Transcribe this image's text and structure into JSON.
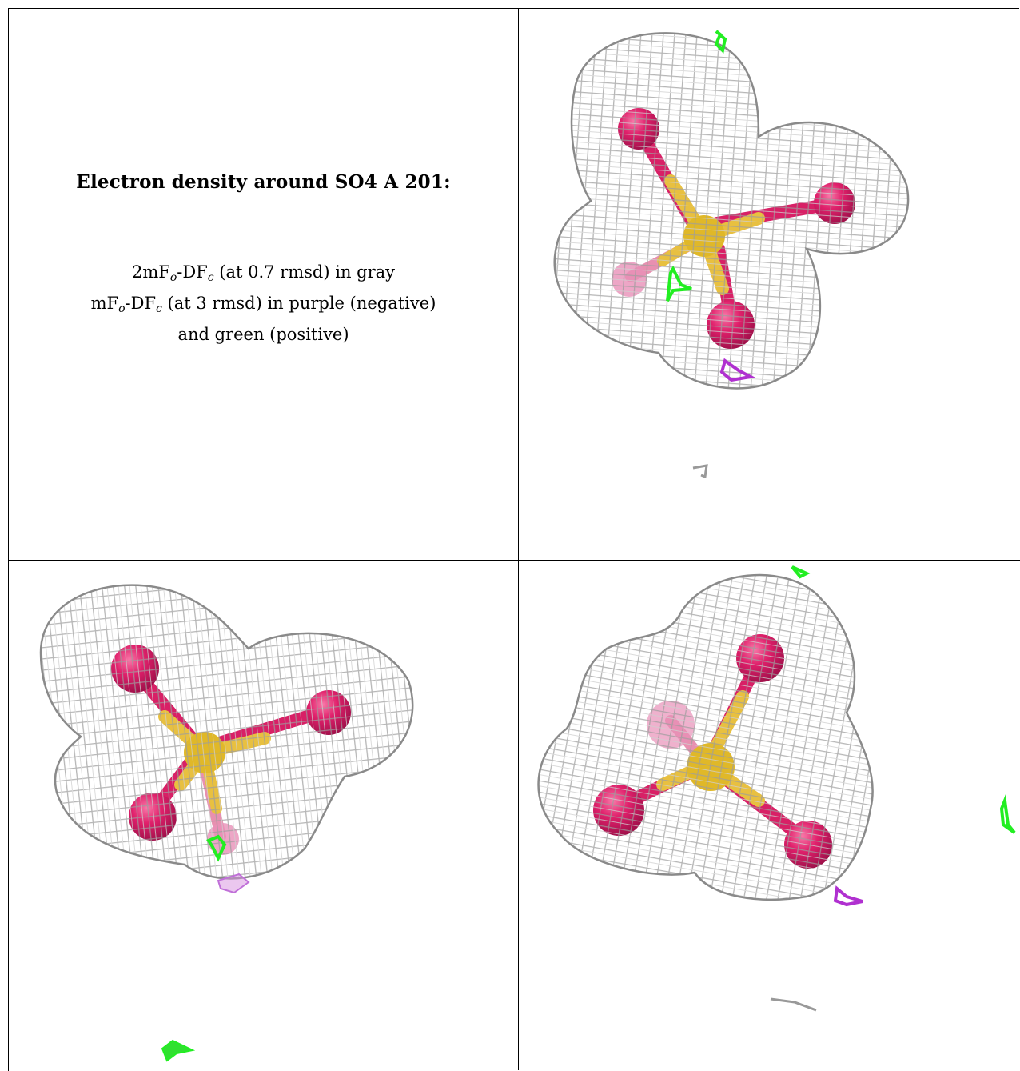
{
  "legend": {
    "title": "Electron density around SO4 A 201:",
    "line1": {
      "a": "2mF",
      "a_sub": "o",
      "b": "-DF",
      "b_sub": "c",
      "c": " (at 0.7 rmsd) in gray"
    },
    "line2": {
      "a": "mF",
      "a_sub": "o",
      "b": "-DF",
      "b_sub": "c",
      "c": " (at 3 rmsd) in purple (negative)"
    },
    "line3": "and green (positive)"
  },
  "colors": {
    "mesh_2fofc": "#a8a8a8",
    "oxygen": "#e0206b",
    "sulfur": "#e8c040",
    "fofc_positive": "#22ee22",
    "fofc_negative": "#b030d0"
  },
  "panels": [
    {
      "name": "view-1",
      "oxygens": 4,
      "positive_blobs": 2,
      "negative_blobs": 1
    },
    {
      "name": "view-2",
      "oxygens": 4,
      "positive_blobs": 2,
      "negative_blobs": 1
    },
    {
      "name": "view-3",
      "oxygens": 4,
      "positive_blobs": 2,
      "negative_blobs": 1
    }
  ]
}
